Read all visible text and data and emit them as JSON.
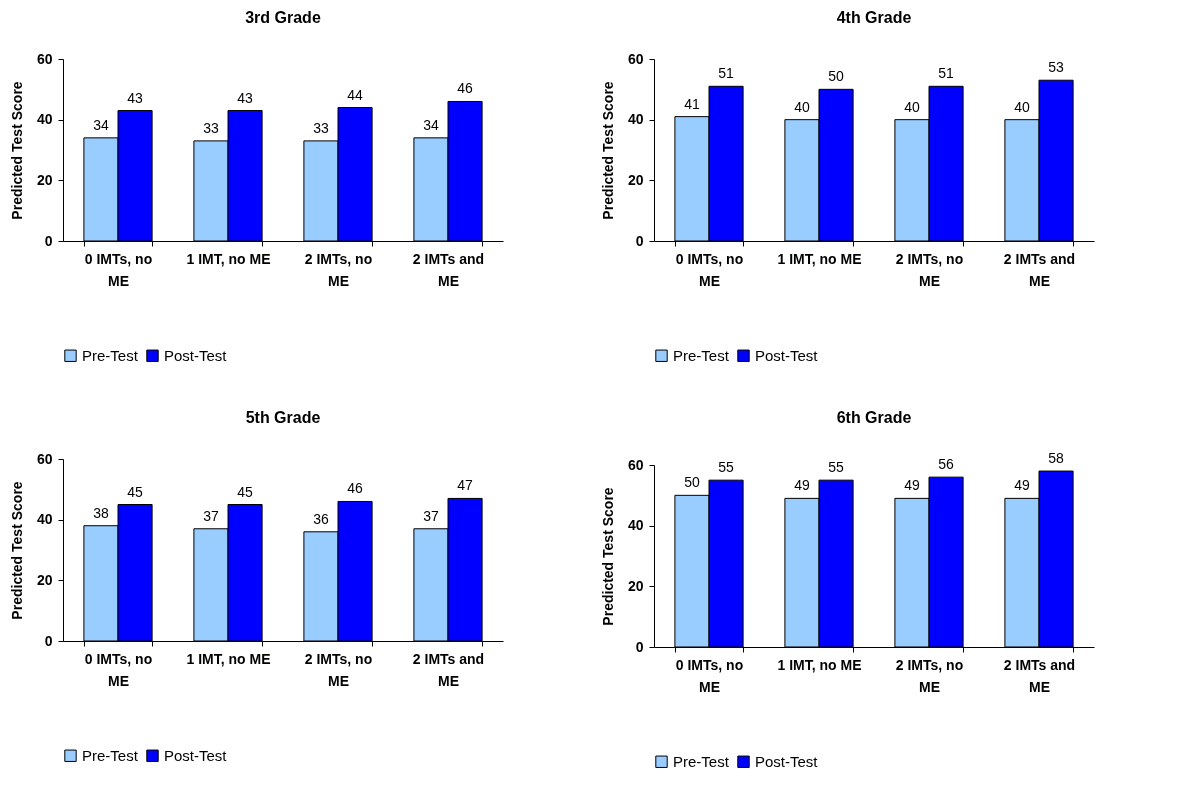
{
  "chart_data": [
    {
      "type": "bar",
      "title": "3rd Grade",
      "ylabel": "Predicted Test Score",
      "categories": [
        "0 IMTs, no ME",
        "1 IMT, no ME",
        "2 IMTs, no ME",
        "2 IMTs and ME"
      ],
      "series": [
        {
          "name": "Pre-Test",
          "color": "#99ccff",
          "values": [
            34,
            33,
            33,
            34
          ]
        },
        {
          "name": "Post-Test",
          "color": "#0000ff",
          "values": [
            43,
            43,
            44,
            46
          ]
        }
      ],
      "ylim": [
        0,
        60
      ],
      "yticks": [
        0,
        20,
        40,
        60
      ],
      "data_labels": true,
      "legend": "bottom",
      "grid": false
    },
    {
      "type": "bar",
      "title": "4th Grade",
      "ylabel": "Predicted Test Score",
      "categories": [
        "0 IMTs, no ME",
        "1 IMT, no ME",
        "2 IMTs, no ME",
        "2 IMTs and ME"
      ],
      "series": [
        {
          "name": "Pre-Test",
          "color": "#99ccff",
          "values": [
            41,
            40,
            40,
            40
          ]
        },
        {
          "name": "Post-Test",
          "color": "#0000ff",
          "values": [
            51,
            50,
            51,
            53
          ]
        }
      ],
      "ylim": [
        0,
        60
      ],
      "yticks": [
        0,
        20,
        40,
        60
      ],
      "data_labels": true,
      "legend": "bottom",
      "grid": false
    },
    {
      "type": "bar",
      "title": "5th Grade",
      "ylabel": "Predicted Test Score",
      "categories": [
        "0 IMTs, no ME",
        "1 IMT, no ME",
        "2 IMTs, no ME",
        "2 IMTs and ME"
      ],
      "series": [
        {
          "name": "Pre-Test",
          "color": "#99ccff",
          "values": [
            38,
            37,
            36,
            37
          ]
        },
        {
          "name": "Post-Test",
          "color": "#0000ff",
          "values": [
            45,
            45,
            46,
            47
          ]
        }
      ],
      "ylim": [
        0,
        60
      ],
      "yticks": [
        0,
        20,
        40,
        60
      ],
      "data_labels": true,
      "legend": "bottom",
      "grid": false
    },
    {
      "type": "bar",
      "title": "6th Grade",
      "ylabel": "Predicted Test Score",
      "categories": [
        "0 IMTs, no ME",
        "1 IMT, no ME",
        "2 IMTs, no ME",
        "2 IMTs and ME"
      ],
      "series": [
        {
          "name": "Pre-Test",
          "color": "#99ccff",
          "values": [
            50,
            49,
            49,
            49
          ]
        },
        {
          "name": "Post-Test",
          "color": "#0000ff",
          "values": [
            55,
            55,
            56,
            58
          ]
        }
      ],
      "ylim": [
        0,
        60
      ],
      "yticks": [
        0,
        20,
        40,
        60
      ],
      "data_labels": true,
      "legend": "bottom",
      "grid": false
    }
  ]
}
